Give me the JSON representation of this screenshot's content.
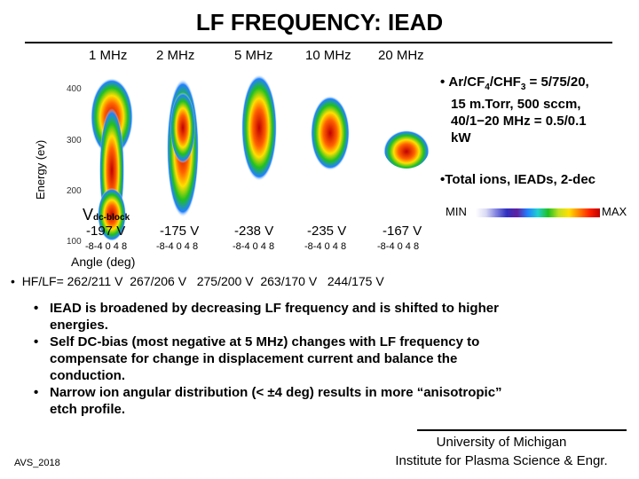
{
  "slide": {
    "title": "LF FREQUENCY: IEAD",
    "frequencies": [
      "1 MHz",
      "2 MHz",
      "5 MHz",
      "10 MHz",
      "20 MHz"
    ],
    "y_axis_label": "Energy (ev)",
    "y_ticks": [
      "400",
      "300",
      "200",
      "100"
    ],
    "vdc_label": "V",
    "vdc_sub": "dc-block",
    "biases": [
      "-197 V",
      "-175 V",
      "-238 V",
      "-235 V",
      "-167 V"
    ],
    "x_ticks": "-8-4 0 4 8",
    "x_axis_label": "Angle (deg)",
    "conditions": "Ar/CF4/CHF3 = 5/75/20, 15 m.Torr, 500 sccm, 40/1−20 MHz = 0.5/0.1 kW",
    "cond_lines": [
      "Ar/CF",
      "/CHF",
      " = 5/75/20,",
      "15 m.Torr,  500 sccm,",
      "40/1−20 MHz = 0.5/0.1",
      "kW"
    ],
    "sub4": "4",
    "sub3": "3",
    "total_ions": "Total ions, IEADs, 2-dec",
    "colorbar_min": "MIN",
    "colorbar_max": "MAX",
    "hf_lf": "HF/LF= 262/211 V  267/206 V   275/200 V  263/170 V   244/175 V",
    "bullets": [
      "IEAD is broadened by decreasing LF frequency and is shifted to higher energies.",
      "Self DC-bias (most negative at 5 MHz) changes with LF frequency to compensate for change in displacement current and balance the conduction.",
      "Narrow ion angular distribution (< ±4 deg) results in more “anisotropic” etch profile."
    ],
    "bullet_lines": [
      [
        "IEAD is broadened by decreasing LF frequency and is shifted to higher",
        "energies."
      ],
      [
        "Self DC-bias (most negative at 5 MHz) changes with LF frequency to",
        "compensate for change in displacement current and balance the",
        "conduction."
      ],
      [
        "Narrow ion angular distribution (< ±4 deg) results in more “anisotropic”",
        "etch profile."
      ]
    ],
    "footer_left": "AVS_2018",
    "footer_right_1": "University of Michigan",
    "footer_right_2": "Institute for Plasma Science & Engr."
  }
}
